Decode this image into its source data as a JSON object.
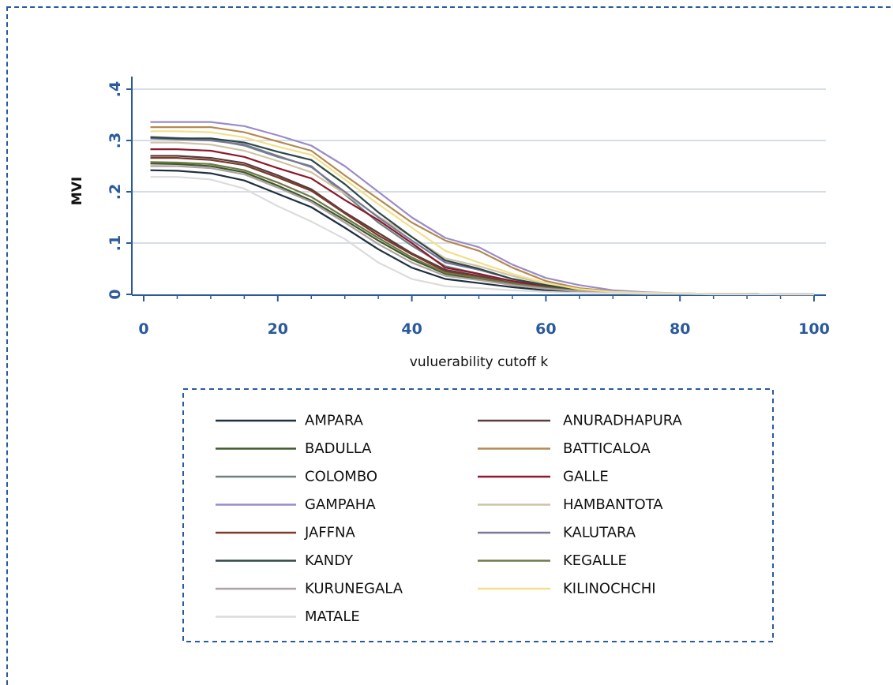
{
  "chart_data": {
    "type": "line",
    "title": "",
    "xlabel": "vuluerability cutoff k",
    "ylabel": "MVI",
    "xlim": [
      0,
      100
    ],
    "ylim": [
      0,
      0.4
    ],
    "x_ticks": [
      0,
      20,
      40,
      60,
      80,
      100
    ],
    "x_tick_labels": [
      "0",
      "20",
      "40",
      "60",
      "80",
      "100"
    ],
    "y_ticks": [
      0,
      0.1,
      0.2,
      0.3,
      0.4
    ],
    "y_tick_labels": [
      "0",
      ".1",
      ".2",
      ".3",
      ".4"
    ],
    "grid": true,
    "legend_position": "bottom",
    "x": [
      1,
      5,
      10,
      15,
      20,
      25,
      30,
      35,
      40,
      45,
      50,
      55,
      60,
      65,
      70,
      75,
      80,
      85,
      90,
      95,
      100
    ],
    "series": [
      {
        "name": "AMPARA",
        "color": "#1f2f3f",
        "values": [
          0.242,
          0.241,
          0.236,
          0.222,
          0.196,
          0.17,
          0.13,
          0.088,
          0.052,
          0.03,
          0.022,
          0.014,
          0.008,
          0.005,
          0.003,
          0.002,
          0.001,
          0.001,
          0.001,
          0.0,
          0.0
        ]
      },
      {
        "name": "ANURADHAPURA",
        "color": "#5a3c3c",
        "values": [
          0.27,
          0.27,
          0.266,
          0.256,
          0.232,
          0.205,
          0.16,
          0.12,
          0.08,
          0.048,
          0.036,
          0.024,
          0.015,
          0.008,
          0.004,
          0.002,
          0.001,
          0.001,
          0.001,
          0.0,
          0.0
        ]
      },
      {
        "name": "BADULLA",
        "color": "#3e5a2a",
        "values": [
          0.255,
          0.254,
          0.25,
          0.238,
          0.212,
          0.183,
          0.145,
          0.105,
          0.068,
          0.04,
          0.03,
          0.02,
          0.012,
          0.006,
          0.003,
          0.002,
          0.001,
          0.001,
          0.001,
          0.0,
          0.0
        ]
      },
      {
        "name": "BATTICALOA",
        "color": "#b48a50",
        "values": [
          0.326,
          0.326,
          0.326,
          0.316,
          0.298,
          0.28,
          0.232,
          0.186,
          0.14,
          0.105,
          0.085,
          0.052,
          0.026,
          0.012,
          0.006,
          0.003,
          0.002,
          0.001,
          0.001,
          0.0,
          0.0
        ]
      },
      {
        "name": "COLOMBO",
        "color": "#6e8282",
        "values": [
          0.307,
          0.305,
          0.302,
          0.29,
          0.268,
          0.25,
          0.195,
          0.14,
          0.095,
          0.055,
          0.04,
          0.025,
          0.015,
          0.008,
          0.004,
          0.002,
          0.001,
          0.001,
          0.001,
          0.0,
          0.0
        ]
      },
      {
        "name": "GALLE",
        "color": "#8b1a2c",
        "values": [
          0.283,
          0.283,
          0.28,
          0.268,
          0.246,
          0.226,
          0.184,
          0.145,
          0.1,
          0.052,
          0.04,
          0.026,
          0.016,
          0.008,
          0.004,
          0.002,
          0.001,
          0.001,
          0.001,
          0.0,
          0.0
        ]
      },
      {
        "name": "GAMPAHA",
        "color": "#9a8cc8",
        "values": [
          0.336,
          0.336,
          0.336,
          0.328,
          0.31,
          0.29,
          0.25,
          0.2,
          0.15,
          0.11,
          0.092,
          0.058,
          0.032,
          0.018,
          0.008,
          0.004,
          0.002,
          0.001,
          0.001,
          0.0,
          0.0
        ]
      },
      {
        "name": "HAMBANTOTA",
        "color": "#cfc3a5",
        "values": [
          0.296,
          0.296,
          0.292,
          0.28,
          0.26,
          0.238,
          0.196,
          0.152,
          0.112,
          0.07,
          0.055,
          0.036,
          0.02,
          0.01,
          0.005,
          0.003,
          0.002,
          0.001,
          0.001,
          0.0,
          0.0
        ]
      },
      {
        "name": "JAFFNA",
        "color": "#7a3a2c",
        "values": [
          0.266,
          0.266,
          0.262,
          0.252,
          0.228,
          0.202,
          0.158,
          0.115,
          0.078,
          0.045,
          0.034,
          0.022,
          0.014,
          0.007,
          0.004,
          0.002,
          0.001,
          0.001,
          0.001,
          0.0,
          0.0
        ]
      },
      {
        "name": "KALUTARA",
        "color": "#7a7896",
        "values": [
          0.304,
          0.302,
          0.3,
          0.292,
          0.27,
          0.248,
          0.2,
          0.15,
          0.105,
          0.062,
          0.048,
          0.03,
          0.018,
          0.009,
          0.004,
          0.002,
          0.001,
          0.001,
          0.001,
          0.0,
          0.0
        ]
      },
      {
        "name": "KANDY",
        "color": "#2e4848",
        "values": [
          0.306,
          0.304,
          0.304,
          0.296,
          0.278,
          0.262,
          0.215,
          0.16,
          0.112,
          0.066,
          0.05,
          0.03,
          0.018,
          0.008,
          0.004,
          0.002,
          0.001,
          0.001,
          0.001,
          0.0,
          0.0
        ]
      },
      {
        "name": "KEGALLE",
        "color": "#6e7a4a",
        "values": [
          0.258,
          0.257,
          0.254,
          0.242,
          0.218,
          0.19,
          0.15,
          0.11,
          0.072,
          0.042,
          0.032,
          0.021,
          0.013,
          0.007,
          0.003,
          0.002,
          0.001,
          0.001,
          0.001,
          0.0,
          0.0
        ]
      },
      {
        "name": "KURUNEGALA",
        "color": "#aea2a2",
        "values": [
          0.25,
          0.25,
          0.246,
          0.234,
          0.208,
          0.18,
          0.14,
          0.098,
          0.062,
          0.036,
          0.028,
          0.018,
          0.011,
          0.006,
          0.003,
          0.002,
          0.001,
          0.001,
          0.001,
          0.0,
          0.0
        ]
      },
      {
        "name": "KILINOCHCHI",
        "color": "#f2e08c",
        "values": [
          0.318,
          0.318,
          0.316,
          0.306,
          0.288,
          0.272,
          0.224,
          0.176,
          0.13,
          0.085,
          0.062,
          0.04,
          0.022,
          0.01,
          0.005,
          0.003,
          0.002,
          0.001,
          0.001,
          0.0,
          0.0
        ]
      },
      {
        "name": "MATALE",
        "color": "#dcdcdc",
        "values": [
          0.229,
          0.229,
          0.224,
          0.206,
          0.172,
          0.142,
          0.108,
          0.062,
          0.03,
          0.016,
          0.012,
          0.008,
          0.005,
          0.003,
          0.002,
          0.001,
          0.001,
          0.0,
          0.0,
          0.0,
          0.0
        ]
      }
    ]
  }
}
